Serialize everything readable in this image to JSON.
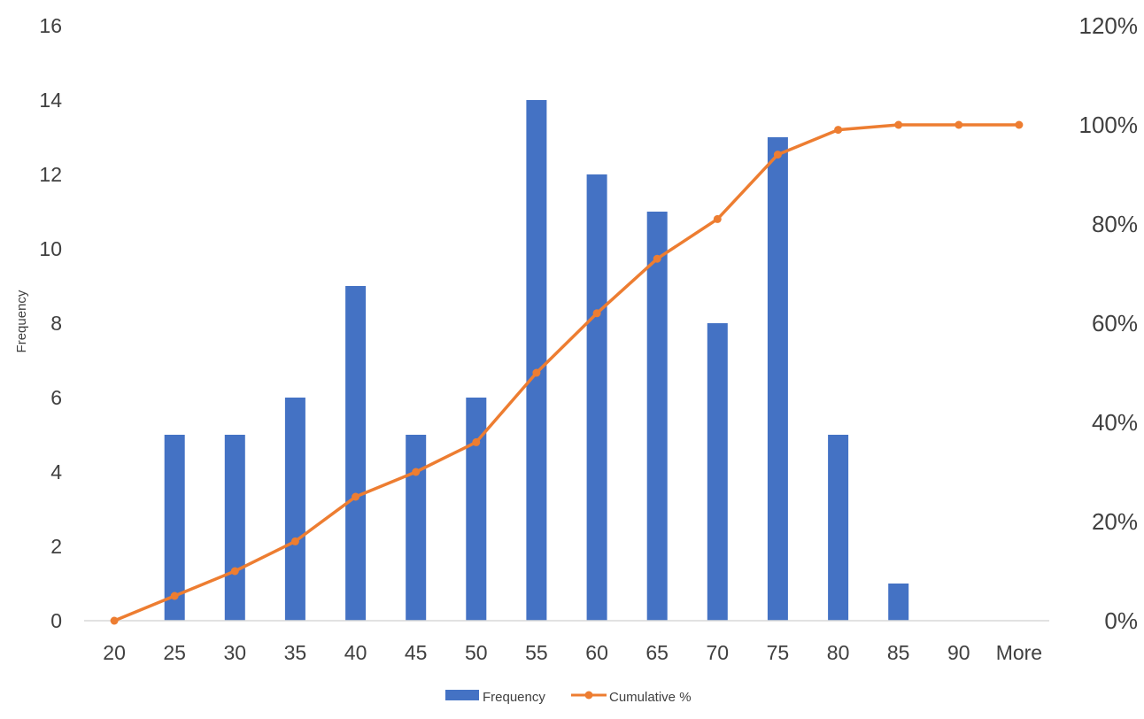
{
  "chart_data": {
    "type": "bar",
    "categories": [
      "20",
      "25",
      "30",
      "35",
      "40",
      "45",
      "50",
      "55",
      "60",
      "65",
      "70",
      "75",
      "80",
      "85",
      "90",
      "More"
    ],
    "series": [
      {
        "name": "Frequency",
        "type": "bar",
        "axis": "left",
        "color": "#4472C4",
        "values": [
          0,
          5,
          5,
          6,
          9,
          5,
          6,
          14,
          12,
          11,
          8,
          13,
          5,
          1,
          0,
          0
        ]
      },
      {
        "name": "Cumulative %",
        "type": "line",
        "axis": "right",
        "color": "#ED7D31",
        "marker": "circle",
        "values": [
          0,
          5,
          10,
          16,
          25,
          30,
          36,
          50,
          62,
          73,
          81,
          94,
          99,
          100,
          100,
          100
        ]
      }
    ],
    "ylabel": "Frequency",
    "ylim": [
      0,
      16
    ],
    "yticks": [
      "0",
      "2",
      "4",
      "6",
      "8",
      "10",
      "12",
      "14",
      "16"
    ],
    "y2lim": [
      0,
      120
    ],
    "y2ticks": [
      "0%",
      "20%",
      "40%",
      "60%",
      "80%",
      "100%",
      "120%"
    ],
    "grid": false,
    "legend_position": "bottom"
  }
}
